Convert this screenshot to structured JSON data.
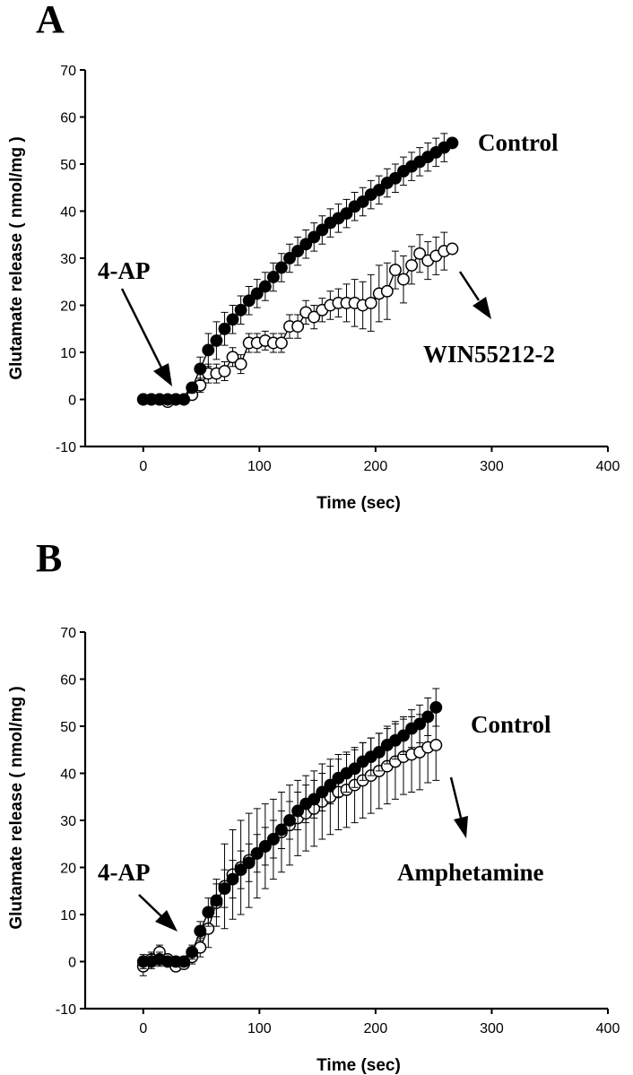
{
  "chart_data": [
    {
      "type": "line",
      "panel": "A",
      "xlabel": "Time (sec)",
      "ylabel": "Glutamate release ( nmol/mg )",
      "xlim": [
        -50,
        400
      ],
      "ylim": [
        -10,
        70
      ],
      "xticks": [
        0,
        100,
        200,
        300,
        400
      ],
      "yticks": [
        -10,
        0,
        10,
        20,
        30,
        40,
        50,
        60,
        70
      ],
      "annotations": {
        "stimulus": "4-AP",
        "series1": "Control",
        "series2": "WIN55212-2"
      },
      "x": [
        0,
        7,
        14,
        21,
        28,
        35,
        42,
        49,
        56,
        63,
        70,
        77,
        84,
        91,
        98,
        105,
        112,
        119,
        126,
        133,
        140,
        147,
        154,
        161,
        168,
        175,
        182,
        189,
        196,
        203,
        210,
        217,
        224,
        231,
        238,
        245,
        252,
        259,
        266
      ],
      "series": [
        {
          "name": "Control",
          "marker": "filled",
          "values": [
            0,
            0,
            0,
            0,
            0,
            0,
            2.5,
            6.5,
            10.5,
            12.5,
            15,
            17,
            19,
            21,
            22.5,
            24,
            26,
            28,
            30,
            31.5,
            33,
            34.5,
            36,
            37.5,
            38.5,
            39.5,
            41,
            42,
            43.5,
            44.5,
            46,
            47,
            48.5,
            49.5,
            50.5,
            51.5,
            52.5,
            53.5,
            54.5
          ],
          "errors": [
            0,
            0,
            0,
            0,
            0,
            0,
            1,
            2.5,
            3.5,
            4,
            3.5,
            3,
            3,
            3,
            3,
            3,
            3,
            3,
            3,
            3,
            3,
            3,
            3,
            3,
            3,
            3,
            3,
            3,
            3,
            3,
            3,
            3,
            3,
            3,
            3,
            3,
            3,
            3,
            0
          ]
        },
        {
          "name": "WIN55212-2",
          "marker": "open",
          "values": [
            0,
            0,
            0,
            -0.5,
            0,
            0,
            1,
            3,
            5.5,
            5.5,
            6,
            9,
            7.5,
            12,
            12,
            12.5,
            12,
            12,
            15.5,
            15.5,
            18.5,
            17.5,
            19,
            20,
            20.5,
            20.5,
            20.5,
            20,
            20.5,
            22.5,
            23,
            27.5,
            25.5,
            28.5,
            31,
            29.5,
            30.5,
            31.5,
            32
          ],
          "errors": [
            0,
            0,
            0,
            0,
            0,
            0,
            1,
            1.5,
            2,
            2,
            2,
            2,
            2,
            2,
            2,
            2,
            2,
            2,
            2.5,
            2.5,
            2.5,
            2.5,
            2.5,
            3,
            3,
            4,
            5,
            5,
            6,
            6,
            6,
            4,
            5,
            4,
            4,
            4,
            4,
            4,
            0
          ]
        }
      ]
    },
    {
      "type": "line",
      "panel": "B",
      "xlabel": "Time (sec)",
      "ylabel": "Glutamate release ( nmol/mg )",
      "xlim": [
        -50,
        400
      ],
      "ylim": [
        -10,
        70
      ],
      "xticks": [
        0,
        100,
        200,
        300,
        400
      ],
      "yticks": [
        -10,
        0,
        10,
        20,
        30,
        40,
        50,
        60,
        70
      ],
      "annotations": {
        "stimulus": "4-AP",
        "series1": "Control",
        "series2": "Amphetamine"
      },
      "x": [
        0,
        7,
        14,
        21,
        28,
        35,
        42,
        49,
        56,
        63,
        70,
        77,
        84,
        91,
        98,
        105,
        112,
        119,
        126,
        133,
        140,
        147,
        154,
        161,
        168,
        175,
        182,
        189,
        196,
        203,
        210,
        217,
        224,
        231,
        238,
        245,
        252
      ],
      "series": [
        {
          "name": "Control",
          "marker": "filled",
          "values": [
            0,
            0,
            0.5,
            0,
            0,
            0,
            2,
            6.5,
            10.5,
            13,
            15.5,
            17.5,
            19.5,
            21,
            23,
            24.5,
            26,
            28,
            30,
            32,
            33.5,
            34.5,
            36,
            37.5,
            39,
            40,
            41,
            42.5,
            43.5,
            44.5,
            46,
            47,
            48,
            49.5,
            50.5,
            52,
            54
          ],
          "errors": [
            1.5,
            1.5,
            1.5,
            1,
            1,
            1,
            1.5,
            2,
            3,
            3.5,
            4,
            4,
            4,
            4,
            4,
            4,
            4,
            4,
            4,
            4,
            4,
            4,
            4,
            4,
            4,
            4,
            4,
            4,
            4,
            4,
            4,
            4,
            4,
            4,
            4,
            4,
            4
          ]
        },
        {
          "name": "Amphetamine",
          "marker": "open",
          "values": [
            -1,
            0.5,
            2,
            0.5,
            -1,
            -0.5,
            1,
            3,
            7,
            12.5,
            16,
            18.5,
            20,
            21.5,
            23,
            24.5,
            26,
            27.5,
            29,
            30.5,
            31.5,
            32.5,
            34,
            35,
            36,
            36.5,
            37.5,
            38.5,
            39.5,
            40.5,
            41.5,
            42.5,
            43.5,
            44,
            44.5,
            45.5,
            46
          ],
          "errors": [
            2,
            1.5,
            1.5,
            1,
            1,
            1,
            1.5,
            2,
            4,
            5,
            9,
            9.5,
            10,
            10,
            9.5,
            9,
            8.5,
            8.5,
            8.5,
            8,
            8,
            8,
            8,
            8,
            8,
            8,
            8,
            8,
            8,
            8,
            8,
            8,
            8,
            8,
            8,
            7.5,
            7.5
          ]
        }
      ]
    }
  ]
}
